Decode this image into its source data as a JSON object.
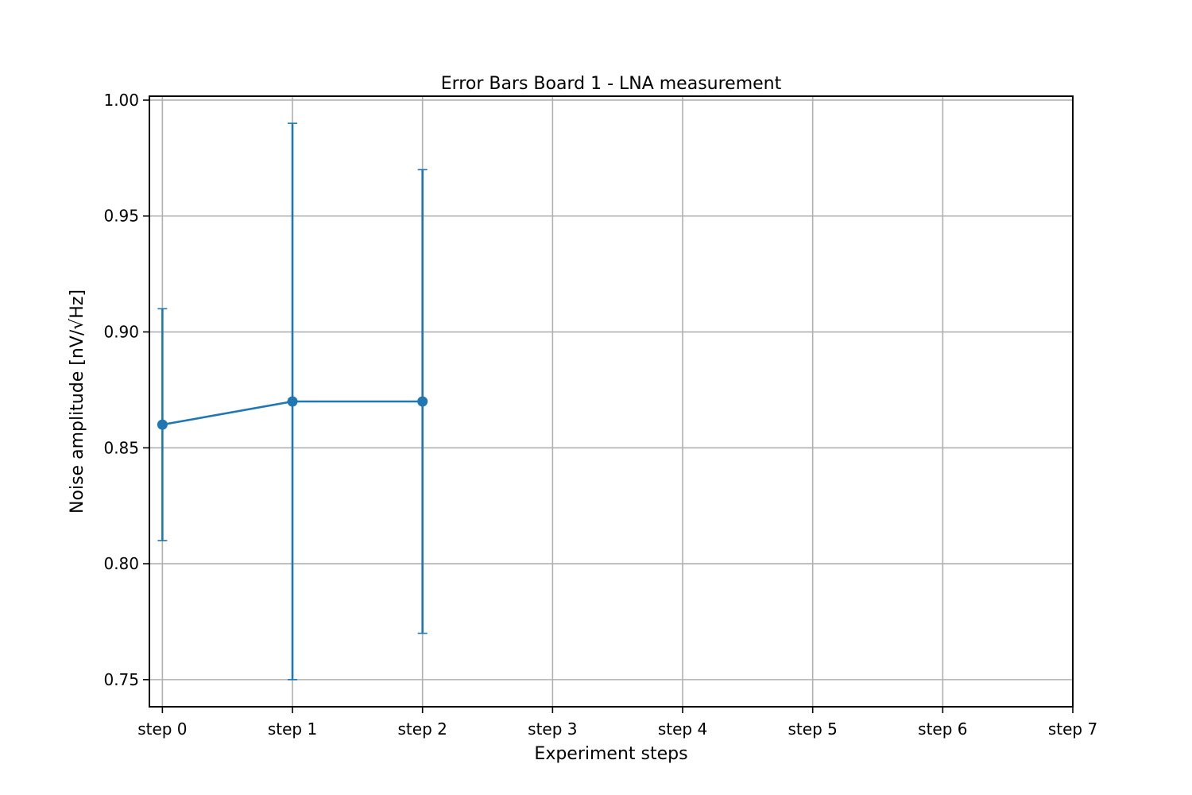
{
  "chart_data": {
    "type": "errorbar",
    "title": "Error Bars Board 1 - LNA measurement",
    "xlabel": "Experiment steps",
    "ylabel": "Noise amplitude [nV/√Hz]",
    "categories": [
      "step 0",
      "step 1",
      "step 2",
      "step 3",
      "step 4",
      "step 5",
      "step 6",
      "step 7"
    ],
    "values": [
      0.86,
      0.87,
      0.87,
      null,
      null,
      null,
      null,
      null
    ],
    "errors": [
      0.05,
      0.12,
      0.1,
      null,
      null,
      null,
      null,
      null
    ],
    "color": "#1f77b4",
    "ylim": [
      0.7383,
      1.0017
    ],
    "yticks": [
      0.75,
      {
        "value": 0.8,
        "label": "0.80"
      },
      0.85,
      {
        "value": 0.9,
        "label": "0.90"
      },
      0.95,
      {
        "value": 1.0,
        "label": "1.00"
      }
    ],
    "grid": true
  }
}
